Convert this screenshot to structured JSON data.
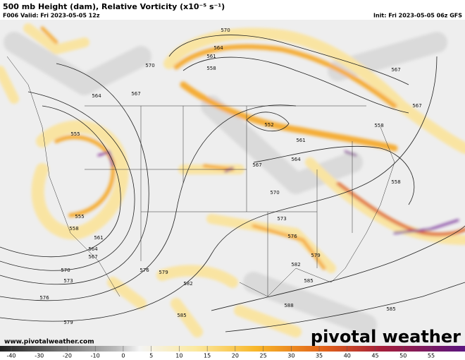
{
  "header": {
    "title": "500 mb Height (dam), Relative Vorticity (x10⁻⁵ s⁻¹)",
    "valid": "F006 Valid: Fri 2023-05-05 12z",
    "init": "Init: Fri 2023-05-05 06z GFS"
  },
  "contour_labels": [
    "570",
    "564",
    "561",
    "558",
    "570",
    "567",
    "564",
    "555",
    "567",
    "564",
    "561",
    "552",
    "558",
    "567",
    "567",
    "558",
    "570",
    "573",
    "576",
    "579",
    "582",
    "585",
    "588",
    "585",
    "555",
    "558",
    "561",
    "564",
    "567",
    "570",
    "573",
    "576",
    "579",
    "576",
    "579",
    "582",
    "585"
  ],
  "footer": {
    "url": "www.pivotalweather.com",
    "brand": "pivotal weather"
  },
  "colorbar": {
    "ticks": [
      -40,
      -30,
      -20,
      -10,
      0,
      5,
      10,
      15,
      20,
      25,
      30,
      35,
      40,
      45,
      50,
      55
    ]
  }
}
